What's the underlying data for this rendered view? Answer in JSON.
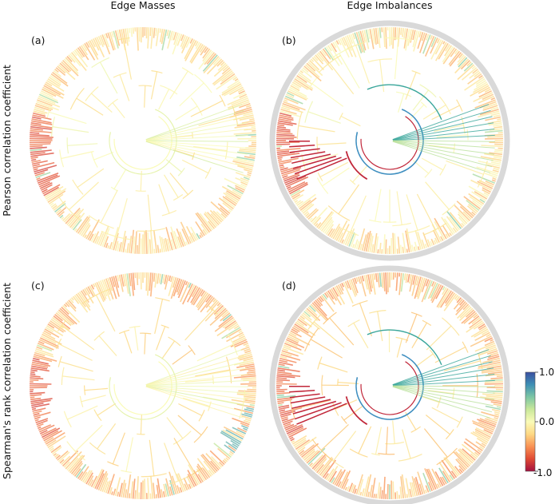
{
  "columns": {
    "left_title": "Edge Masses",
    "right_title": "Edge Imbalances"
  },
  "rows": {
    "top_label": "Pearson correlation coefficient",
    "bottom_label": "Spearman's rank correlation coefficient"
  },
  "panels": [
    {
      "label": "(a)",
      "kind": "masses",
      "seed": 11,
      "tint": 0.25
    },
    {
      "label": "(b)",
      "kind": "imbalances",
      "seed": 23,
      "tint": 0.25
    },
    {
      "label": "(c)",
      "kind": "masses",
      "seed": 37,
      "tint": 0.45
    },
    {
      "label": "(d)",
      "kind": "imbalances",
      "seed": 53,
      "tint": 0.5
    }
  ],
  "colorbar": {
    "max_label": "1.0",
    "mid_label": "0.0",
    "min_label": "-1.0",
    "colors": [
      "#3a4fa0",
      "#3e8fb5",
      "#7cc6a4",
      "#c9e89a",
      "#fafbb8",
      "#fdd884",
      "#f99254",
      "#e04a33",
      "#a3103f"
    ]
  },
  "palette": {
    "highlight_red": "#c1273a",
    "highlight_blue": "#3f8fc0",
    "highlight_teal": "#3aa69b",
    "ring_grey": "#d9d9d9"
  }
}
